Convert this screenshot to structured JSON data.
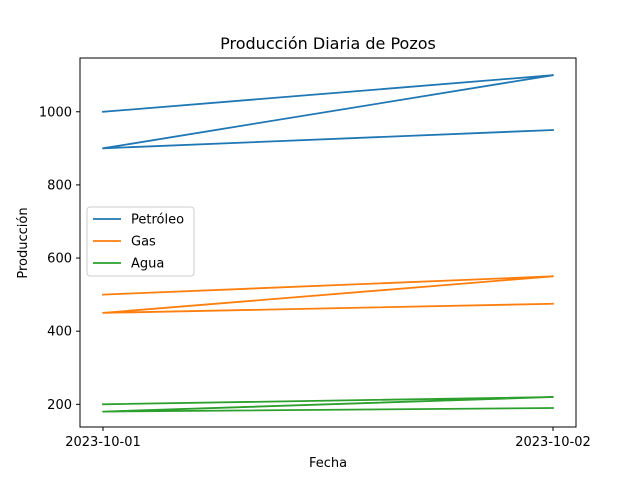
{
  "chart_data": {
    "type": "line",
    "title": "Producción Diaria de Pozos",
    "xlabel": "Fecha",
    "ylabel": "Producción",
    "x_ticks": [
      "2023-10-01",
      "2023-10-02"
    ],
    "y_ticks": [
      200,
      400,
      600,
      800,
      1000
    ],
    "ylim": [
      138,
      1147
    ],
    "grid": false,
    "legend_position": "center-left",
    "series": [
      {
        "name": "Petróleo",
        "color": "#1f77b4",
        "points": [
          {
            "x": "2023-10-01",
            "y": 1000
          },
          {
            "x": "2023-10-02",
            "y": 1100
          },
          {
            "x": "2023-10-01",
            "y": 900
          },
          {
            "x": "2023-10-02",
            "y": 950
          }
        ]
      },
      {
        "name": "Gas",
        "color": "#ff7f0e",
        "points": [
          {
            "x": "2023-10-01",
            "y": 500
          },
          {
            "x": "2023-10-02",
            "y": 550
          },
          {
            "x": "2023-10-01",
            "y": 450
          },
          {
            "x": "2023-10-02",
            "y": 475
          }
        ]
      },
      {
        "name": "Agua",
        "color": "#2ca02c",
        "points": [
          {
            "x": "2023-10-01",
            "y": 200
          },
          {
            "x": "2023-10-02",
            "y": 220
          },
          {
            "x": "2023-10-01",
            "y": 180
          },
          {
            "x": "2023-10-02",
            "y": 190
          }
        ]
      }
    ]
  }
}
